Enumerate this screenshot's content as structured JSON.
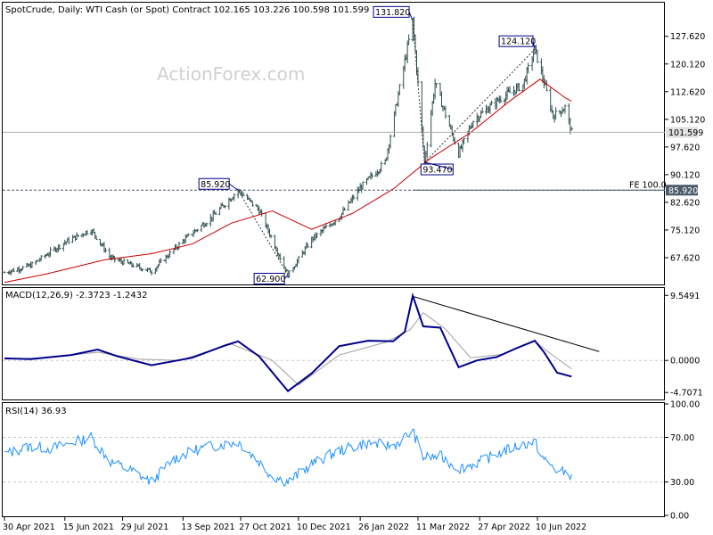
{
  "header": {
    "title": "SpotCrude, Daily:  WTI Cash (or Spot) Contract  102.165 103.226 100.598 101.599",
    "watermark": "ActionForex.com"
  },
  "colors": {
    "price": "#2f4f4f",
    "ma": "#cc0000",
    "macd": "#00008b",
    "signal": "#a0a0a0",
    "rsi": "#1e90ff",
    "grid": "#c8c8c8",
    "frame": "#000000",
    "level_line": "#4a5a6a"
  },
  "chart_data": [
    {
      "type": "line",
      "panel": "price",
      "title": "SpotCrude, Daily:  WTI Cash (or Spot) Contract  102.165 103.226 100.598 101.599",
      "y_ticks": [
        "127.620",
        "120.120",
        "112.620",
        "105.120",
        "97.620",
        "90.120",
        "82.620",
        "75.120",
        "67.620"
      ],
      "ylim": [
        60.6,
        136.5
      ],
      "current_price": "101.599",
      "fe_label": "FE 100.0",
      "fe_value": "85.920",
      "annotations": [
        {
          "label": "131.820",
          "value": 131.82,
          "date": "2022-03-07"
        },
        {
          "label": "124.120",
          "value": 124.12,
          "date": "2022-06-08"
        },
        {
          "label": "93.470",
          "value": 93.47,
          "date": "2022-03-16"
        },
        {
          "label": "85.920",
          "value": 85.92,
          "date": "2021-10-25"
        },
        {
          "label": "62.900",
          "value": 62.9,
          "date": "2021-12-02"
        }
      ],
      "series": [
        {
          "style": "bars",
          "x": [
            "2021-04-30",
            "2021-05-20",
            "2021-06-15",
            "2021-07-05",
            "2021-07-20",
            "2021-08-20",
            "2021-09-13",
            "2021-10-05",
            "2021-10-25",
            "2021-11-10",
            "2021-12-02",
            "2021-12-20",
            "2022-01-10",
            "2022-01-26",
            "2022-02-14",
            "2022-03-07",
            "2022-03-16",
            "2022-03-24",
            "2022-04-11",
            "2022-04-22",
            "2022-05-12",
            "2022-05-30",
            "2022-06-08",
            "2022-06-22",
            "2022-07-01",
            "2022-07-06"
          ],
          "values": [
            63.6,
            65.5,
            71.8,
            75.2,
            67.5,
            63.9,
            72.2,
            78.6,
            85.9,
            80.5,
            62.9,
            72.6,
            78.6,
            86.5,
            93.5,
            131.8,
            93.47,
            114.9,
            95.8,
            104.8,
            110.6,
            114.5,
            124.12,
            106.0,
            108.4,
            101.599
          ]
        },
        {
          "name": "",
          "style": "line",
          "x": [
            "2021-04-30",
            "2021-06-01",
            "2021-07-15",
            "2021-08-20",
            "2021-09-20",
            "2021-10-20",
            "2021-11-20",
            "2021-12-20",
            "2022-01-20",
            "2022-02-20",
            "2022-03-20",
            "2022-04-20",
            "2022-05-20",
            "2022-06-12",
            "2022-07-01",
            "2022-07-06"
          ],
          "values": [
            60.9,
            63.2,
            67.0,
            68.7,
            71.3,
            77.0,
            80.3,
            75.3,
            79.6,
            86.2,
            94.4,
            101.5,
            110.1,
            116.0,
            111.0,
            110.0
          ]
        }
      ]
    },
    {
      "type": "line",
      "panel": "macd",
      "title": "MACD(12,26,9) -2.3723 -1.2432",
      "y_ticks": [
        "9.5491",
        "0.0000",
        "-4.7071"
      ],
      "ylim": [
        -5.6,
        10.5
      ],
      "series": [
        {
          "name": "",
          "style": "bold-line",
          "x": [
            "2021-04-30",
            "2021-05-20",
            "2021-06-20",
            "2021-07-10",
            "2021-07-25",
            "2021-08-20",
            "2021-09-20",
            "2021-10-15",
            "2021-10-25",
            "2021-11-10",
            "2021-12-02",
            "2021-12-20",
            "2022-01-10",
            "2022-02-01",
            "2022-02-20",
            "2022-03-01",
            "2022-03-07",
            "2022-03-15",
            "2022-03-28",
            "2022-04-11",
            "2022-04-25",
            "2022-05-10",
            "2022-05-25",
            "2022-06-08",
            "2022-06-15",
            "2022-06-25",
            "2022-07-06"
          ],
          "values": [
            0.3,
            0.2,
            0.8,
            1.6,
            0.6,
            -0.7,
            0.4,
            2.2,
            2.8,
            0.6,
            -4.5,
            -1.9,
            2.1,
            2.9,
            2.8,
            4.2,
            9.5,
            5.0,
            4.8,
            -1.0,
            0.0,
            0.5,
            1.8,
            2.9,
            1.2,
            -1.8,
            -2.3723
          ]
        },
        {
          "name": "",
          "style": "thin-line",
          "x": [
            "2021-04-30",
            "2021-06-01",
            "2021-07-10",
            "2021-08-10",
            "2021-09-10",
            "2021-10-20",
            "2021-11-20",
            "2021-12-10",
            "2022-01-10",
            "2022-02-15",
            "2022-03-05",
            "2022-03-15",
            "2022-04-01",
            "2022-04-20",
            "2022-05-15",
            "2022-06-08",
            "2022-06-20",
            "2022-07-06"
          ],
          "values": [
            0.2,
            0.4,
            1.2,
            0.2,
            0.0,
            2.4,
            0.0,
            -3.6,
            0.8,
            2.7,
            4.5,
            7.0,
            4.6,
            0.4,
            0.9,
            2.8,
            1.0,
            -1.2432
          ]
        }
      ],
      "trendline": {
        "x": [
          "2022-03-07",
          "2022-07-27"
        ],
        "y": [
          9.4,
          1.3
        ]
      }
    },
    {
      "type": "line",
      "panel": "rsi",
      "title": "RSI(14) 36.93",
      "y_ticks": [
        "100.00",
        "70.00",
        "30.00",
        "0.00"
      ],
      "ylim": [
        0,
        100
      ],
      "reference_lines": [
        70,
        30
      ],
      "series": [
        {
          "name": "",
          "x": [
            "2021-04-30",
            "2021-05-20",
            "2021-06-05",
            "2021-06-20",
            "2021-07-05",
            "2021-07-20",
            "2021-08-05",
            "2021-08-20",
            "2021-09-05",
            "2021-09-25",
            "2021-10-15",
            "2021-10-25",
            "2021-11-10",
            "2021-11-20",
            "2021-12-02",
            "2021-12-20",
            "2022-01-10",
            "2022-02-01",
            "2022-02-20",
            "2022-03-01",
            "2022-03-07",
            "2022-03-15",
            "2022-03-28",
            "2022-04-11",
            "2022-04-25",
            "2022-05-10",
            "2022-05-25",
            "2022-06-08",
            "2022-06-15",
            "2022-06-25",
            "2022-07-06"
          ],
          "values": [
            55,
            62,
            60,
            65,
            70,
            48,
            40,
            30,
            50,
            60,
            64,
            66,
            48,
            35,
            30,
            46,
            58,
            65,
            62,
            70,
            76,
            52,
            53,
            42,
            47,
            55,
            62,
            66,
            50,
            40,
            36.93
          ]
        }
      ]
    }
  ],
  "x_ticks": [
    {
      "label": "30 Apr 2021",
      "date": "2021-04-30"
    },
    {
      "label": "15 Jun 2021",
      "date": "2021-06-15"
    },
    {
      "label": "29 Jul 2021",
      "date": "2021-07-29"
    },
    {
      "label": "13 Sep 2021",
      "date": "2021-09-13"
    },
    {
      "label": "27 Oct 2021",
      "date": "2021-10-27"
    },
    {
      "label": "10 Dec 2021",
      "date": "2021-12-10"
    },
    {
      "label": "26 Jan 2022",
      "date": "2022-01-26"
    },
    {
      "label": "11 Mar 2022",
      "date": "2022-03-11"
    },
    {
      "label": "27 Apr 2022",
      "date": "2022-04-27"
    },
    {
      "label": "10 Jun 2022",
      "date": "2022-06-10"
    }
  ]
}
